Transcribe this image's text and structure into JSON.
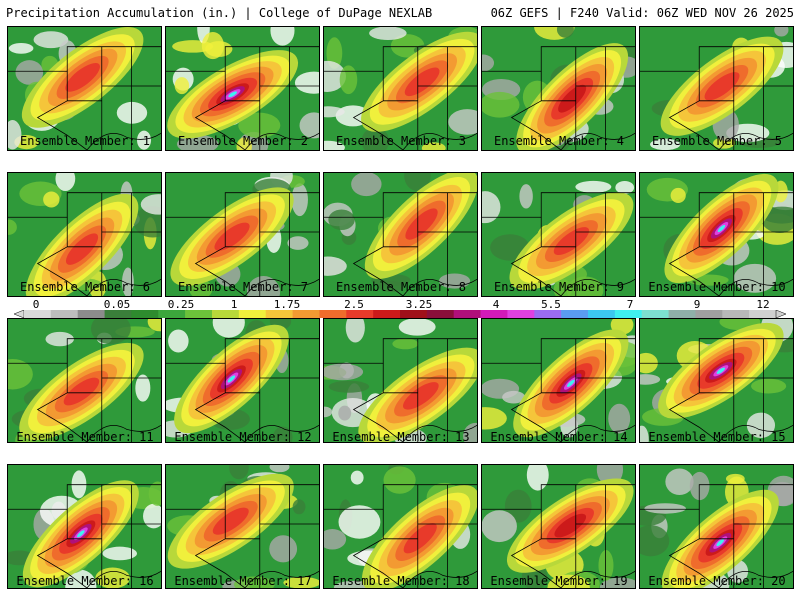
{
  "header": {
    "left": "Precipitation Accumulation (in.) | College of DuPage NEXLAB",
    "right": "06Z GEFS | F240 Valid: 06Z WED NOV 26 2025"
  },
  "colorbar": {
    "ticks": [
      "0",
      "0.05",
      "0.25",
      "1",
      "1.75",
      "2.5",
      "3.25",
      "4",
      "5.5",
      "7",
      "9",
      "12"
    ],
    "colors": [
      "#d9d9d9",
      "#bdbdbd",
      "#8c8c8c",
      "#3a7f3a",
      "#2e8b2e",
      "#3ca63c",
      "#6cc23a",
      "#b8d83a",
      "#f0f03c",
      "#f5c53a",
      "#f39a32",
      "#ef6c2c",
      "#e83a2a",
      "#cc1a1a",
      "#a0101a",
      "#8a0f3a",
      "#b0107a",
      "#d21ab8",
      "#e040e0",
      "#9a6cf0",
      "#5a9cf0",
      "#3cc8f0",
      "#40f0f0",
      "#7de0d0",
      "#8fb0a8",
      "#a0a0a0",
      "#b8b8b8",
      "#d0d0d0"
    ]
  },
  "panels": [
    {
      "caption": "Ensemble Member: 1",
      "intensity": 0.7
    },
    {
      "caption": "Ensemble Member: 2",
      "intensity": 1.0
    },
    {
      "caption": "Ensemble Member: 3",
      "intensity": 0.6
    },
    {
      "caption": "Ensemble Member: 4",
      "intensity": 0.85
    },
    {
      "caption": "Ensemble Member: 5",
      "intensity": 0.75
    },
    {
      "caption": "Ensemble Member: 6",
      "intensity": 0.7
    },
    {
      "caption": "Ensemble Member: 7",
      "intensity": 0.6
    },
    {
      "caption": "Ensemble Member: 8",
      "intensity": 0.55
    },
    {
      "caption": "Ensemble Member: 9",
      "intensity": 0.6
    },
    {
      "caption": "Ensemble Member: 10",
      "intensity": 1.0
    },
    {
      "caption": "Ensemble Member: 11",
      "intensity": 0.8
    },
    {
      "caption": "Ensemble Member: 12",
      "intensity": 0.95
    },
    {
      "caption": "Ensemble Member: 13",
      "intensity": 0.55
    },
    {
      "caption": "Ensemble Member: 14",
      "intensity": 1.0
    },
    {
      "caption": "Ensemble Member: 15",
      "intensity": 0.9
    },
    {
      "caption": "Ensemble Member: 16",
      "intensity": 0.95
    },
    {
      "caption": "Ensemble Member: 17",
      "intensity": 0.75
    },
    {
      "caption": "Ensemble Member: 18",
      "intensity": 0.7
    },
    {
      "caption": "Ensemble Member: 19",
      "intensity": 0.85
    },
    {
      "caption": "Ensemble Member: 20",
      "intensity": 0.9
    }
  ]
}
